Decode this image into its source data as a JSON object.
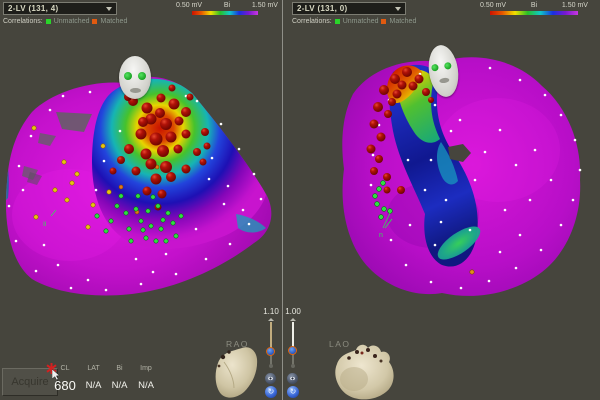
{
  "window": {
    "background": "#46453d",
    "divider_color": "#8f8f88"
  },
  "colorbar": {
    "min_label": "0.50 mV",
    "scale_label": "Bi",
    "max_label": "1.50 mV",
    "gradient": [
      "#cc1200",
      "#e85800",
      "#f0e000",
      "#28c028",
      "#10c8c8",
      "#1830e0",
      "#7818d0",
      "#c838e0"
    ]
  },
  "panels": [
    {
      "map_selector": "2-LV (131, 4)",
      "correlations_label": "Correlations:",
      "unmatched_label": "Unmatched",
      "matched_label": "Matched",
      "unmatched_color": "#2ad42a",
      "matched_color": "#e05a10",
      "marker_label": "II",
      "zoom_value": "1.10",
      "view_orientation": "RAO"
    },
    {
      "map_selector": "2-LV (131, 0)",
      "correlations_label": "Correlations:",
      "unmatched_label": "Unmatched",
      "matched_label": "Matched",
      "unmatched_color": "#2ad42a",
      "matched_color": "#e05a10",
      "marker_label": "n",
      "zoom_value": "1.00",
      "view_orientation": "LAO"
    }
  ],
  "toolbar": {
    "acquire_label": "Acquire"
  },
  "measurements": {
    "headers": [
      "CL",
      "LAT",
      "Bi",
      "Imp"
    ],
    "values": [
      "680",
      "N/A",
      "N/A",
      "N/A"
    ]
  },
  "map_colors": {
    "healthy_tissue": "#cc14cc",
    "scar_core": "#cc1200",
    "border_zone": "#f0d800",
    "low_voltage_blue": "#1830d8",
    "ablation_lesion": "#8b0f00",
    "unmatched_point": "#2ee040",
    "auto_point_yellow": "#e8c410",
    "surface_point": "#ffffff"
  }
}
